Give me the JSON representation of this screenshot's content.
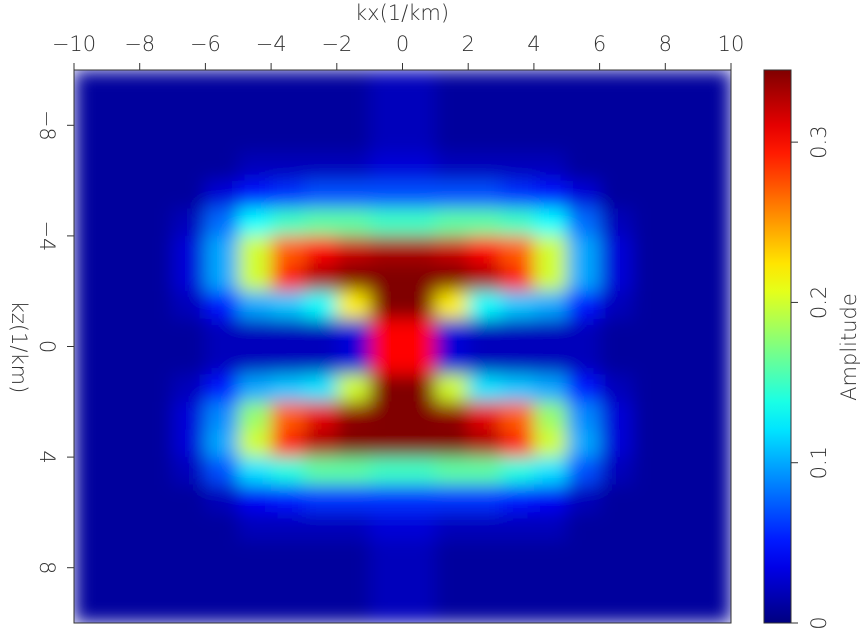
{
  "chart_data": {
    "type": "heatmap",
    "xlabel": "kx(1/km)",
    "ylabel": "kz(1/km)",
    "colormap": "jet",
    "x": [
      -9.5,
      -8.5,
      -7.5,
      -6.5,
      -5.5,
      -4.5,
      -3.5,
      -2.5,
      -1.5,
      -0.5,
      0.5,
      1.5,
      2.5,
      3.5,
      4.5,
      5.5,
      6.5,
      7.5,
      8.5,
      9.5
    ],
    "y": [
      -9.5,
      -8.5,
      -7.5,
      -6.5,
      -5.5,
      -4.5,
      -3.5,
      -2.5,
      -1.5,
      -0.5,
      0.5,
      1.5,
      2.5,
      3.5,
      4.5,
      5.5,
      6.5,
      7.5,
      8.5,
      9.5
    ],
    "z": [
      [
        0.01,
        0.01,
        0.01,
        0.01,
        0.01,
        0.01,
        0.01,
        0.01,
        0.01,
        0.02,
        0.02,
        0.01,
        0.01,
        0.01,
        0.01,
        0.01,
        0.01,
        0.01,
        0.01,
        0.01
      ],
      [
        0.01,
        0.01,
        0.01,
        0.01,
        0.01,
        0.01,
        0.01,
        0.01,
        0.01,
        0.02,
        0.02,
        0.01,
        0.01,
        0.01,
        0.01,
        0.01,
        0.01,
        0.01,
        0.01,
        0.01
      ],
      [
        0.01,
        0.01,
        0.01,
        0.01,
        0.01,
        0.01,
        0.01,
        0.01,
        0.01,
        0.02,
        0.02,
        0.01,
        0.01,
        0.01,
        0.01,
        0.01,
        0.01,
        0.01,
        0.01,
        0.01
      ],
      [
        0.01,
        0.01,
        0.01,
        0.01,
        0.01,
        0.02,
        0.02,
        0.02,
        0.02,
        0.03,
        0.03,
        0.02,
        0.02,
        0.02,
        0.02,
        0.01,
        0.01,
        0.01,
        0.01,
        0.01
      ],
      [
        0.01,
        0.01,
        0.01,
        0.01,
        0.03,
        0.05,
        0.06,
        0.07,
        0.07,
        0.07,
        0.07,
        0.07,
        0.07,
        0.06,
        0.05,
        0.03,
        0.01,
        0.01,
        0.01,
        0.01
      ],
      [
        0.01,
        0.01,
        0.01,
        0.02,
        0.08,
        0.13,
        0.15,
        0.16,
        0.16,
        0.15,
        0.15,
        0.16,
        0.16,
        0.15,
        0.13,
        0.08,
        0.02,
        0.01,
        0.01,
        0.01
      ],
      [
        0.01,
        0.01,
        0.01,
        0.03,
        0.1,
        0.2,
        0.27,
        0.3,
        0.32,
        0.33,
        0.33,
        0.32,
        0.3,
        0.27,
        0.2,
        0.1,
        0.03,
        0.01,
        0.01,
        0.01
      ],
      [
        0.01,
        0.01,
        0.01,
        0.03,
        0.1,
        0.2,
        0.29,
        0.33,
        0.345,
        0.345,
        0.345,
        0.345,
        0.33,
        0.29,
        0.2,
        0.1,
        0.03,
        0.01,
        0.01,
        0.01
      ],
      [
        0.01,
        0.01,
        0.01,
        0.02,
        0.05,
        0.1,
        0.11,
        0.13,
        0.22,
        0.345,
        0.345,
        0.22,
        0.13,
        0.11,
        0.1,
        0.05,
        0.02,
        0.01,
        0.01,
        0.01
      ],
      [
        0.01,
        0.01,
        0.01,
        0.01,
        0.02,
        0.02,
        0.02,
        0.02,
        0.03,
        0.3,
        0.3,
        0.03,
        0.02,
        0.02,
        0.02,
        0.02,
        0.01,
        0.01,
        0.01,
        0.01
      ],
      [
        0.01,
        0.01,
        0.01,
        0.01,
        0.02,
        0.02,
        0.02,
        0.02,
        0.03,
        0.3,
        0.3,
        0.03,
        0.02,
        0.02,
        0.02,
        0.02,
        0.01,
        0.01,
        0.01,
        0.01
      ],
      [
        0.01,
        0.01,
        0.01,
        0.02,
        0.05,
        0.1,
        0.11,
        0.12,
        0.2,
        0.345,
        0.345,
        0.2,
        0.12,
        0.11,
        0.1,
        0.05,
        0.02,
        0.01,
        0.01,
        0.01
      ],
      [
        0.01,
        0.01,
        0.01,
        0.03,
        0.09,
        0.18,
        0.27,
        0.31,
        0.34,
        0.345,
        0.345,
        0.34,
        0.31,
        0.27,
        0.18,
        0.09,
        0.03,
        0.01,
        0.01,
        0.01
      ],
      [
        0.01,
        0.01,
        0.01,
        0.03,
        0.1,
        0.2,
        0.29,
        0.33,
        0.345,
        0.345,
        0.345,
        0.345,
        0.33,
        0.29,
        0.2,
        0.1,
        0.03,
        0.01,
        0.01,
        0.01
      ],
      [
        0.01,
        0.01,
        0.01,
        0.02,
        0.07,
        0.12,
        0.14,
        0.16,
        0.16,
        0.15,
        0.15,
        0.16,
        0.16,
        0.14,
        0.12,
        0.07,
        0.02,
        0.01,
        0.01,
        0.01
      ],
      [
        0.01,
        0.01,
        0.01,
        0.01,
        0.02,
        0.04,
        0.05,
        0.06,
        0.06,
        0.06,
        0.06,
        0.06,
        0.06,
        0.05,
        0.04,
        0.02,
        0.01,
        0.01,
        0.01,
        0.01
      ],
      [
        0.01,
        0.01,
        0.01,
        0.01,
        0.01,
        0.02,
        0.02,
        0.02,
        0.02,
        0.03,
        0.03,
        0.02,
        0.02,
        0.02,
        0.02,
        0.01,
        0.01,
        0.01,
        0.01,
        0.01
      ],
      [
        0.01,
        0.01,
        0.01,
        0.01,
        0.01,
        0.01,
        0.01,
        0.01,
        0.01,
        0.02,
        0.02,
        0.01,
        0.01,
        0.01,
        0.01,
        0.01,
        0.01,
        0.01,
        0.01,
        0.01
      ],
      [
        0.01,
        0.01,
        0.01,
        0.01,
        0.01,
        0.01,
        0.01,
        0.01,
        0.01,
        0.02,
        0.02,
        0.01,
        0.01,
        0.01,
        0.01,
        0.01,
        0.01,
        0.01,
        0.01,
        0.01
      ],
      [
        0.01,
        0.01,
        0.01,
        0.01,
        0.01,
        0.01,
        0.01,
        0.01,
        0.01,
        0.02,
        0.02,
        0.01,
        0.01,
        0.01,
        0.01,
        0.01,
        0.01,
        0.01,
        0.01,
        0.01
      ]
    ],
    "xlim": [
      -10,
      10
    ],
    "xticks": [
      {
        "value": -10,
        "label": "−10"
      },
      {
        "value": -8,
        "label": "−8"
      },
      {
        "value": -6,
        "label": "−6"
      },
      {
        "value": -4,
        "label": "−4"
      },
      {
        "value": -2,
        "label": "−2"
      },
      0,
      2,
      4,
      6,
      8,
      10
    ],
    "ylim": [
      -10,
      10
    ],
    "yticks": [
      {
        "value": -8,
        "label": "−8"
      },
      {
        "value": -4,
        "label": "−4"
      },
      0,
      4,
      8
    ],
    "colorbar": {
      "label": "Amplitude",
      "lim": [
        0,
        0.345
      ],
      "ticks": [
        0,
        0.1,
        0.2,
        0.3
      ]
    }
  }
}
